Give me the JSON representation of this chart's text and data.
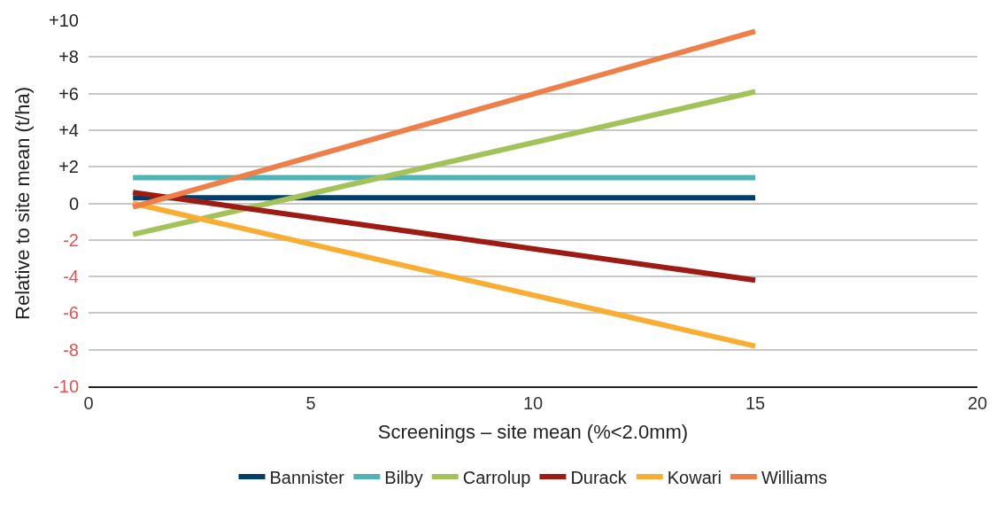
{
  "chart_data": {
    "type": "line",
    "xlabel": "Screenings – site mean (%<2.0mm)",
    "ylabel": "Relative to site mean (t/ha)",
    "x": [
      1,
      15
    ],
    "series": [
      {
        "name": "Bannister",
        "color": "#003f6b",
        "values": [
          0.3,
          0.3
        ]
      },
      {
        "name": "Bilby",
        "color": "#52b3b5",
        "values": [
          1.4,
          1.4
        ]
      },
      {
        "name": "Carrolup",
        "color": "#a3c35a",
        "values": [
          -1.7,
          6.1
        ]
      },
      {
        "name": "Durack",
        "color": "#9e1b14",
        "values": [
          0.6,
          -4.2
        ]
      },
      {
        "name": "Kowari",
        "color": "#f9ad32",
        "values": [
          0.0,
          -7.8
        ]
      },
      {
        "name": "Williams",
        "color": "#ef7f49",
        "values": [
          -0.2,
          9.4
        ]
      }
    ],
    "xlim": [
      0,
      20
    ],
    "xticks": [
      0,
      5,
      10,
      15,
      20
    ],
    "ylim": [
      -10,
      10
    ],
    "yticks": [
      {
        "value": 10,
        "label": "+10"
      },
      {
        "value": 8,
        "label": "+8"
      },
      {
        "value": 6,
        "label": "+6"
      },
      {
        "value": 4,
        "label": "+4"
      },
      {
        "value": 2,
        "label": "+2"
      },
      0,
      -2,
      -4,
      -6,
      -8,
      -10
    ],
    "grid": "y",
    "legend": "bottom",
    "marker": "none",
    "line_style": "solid"
  }
}
